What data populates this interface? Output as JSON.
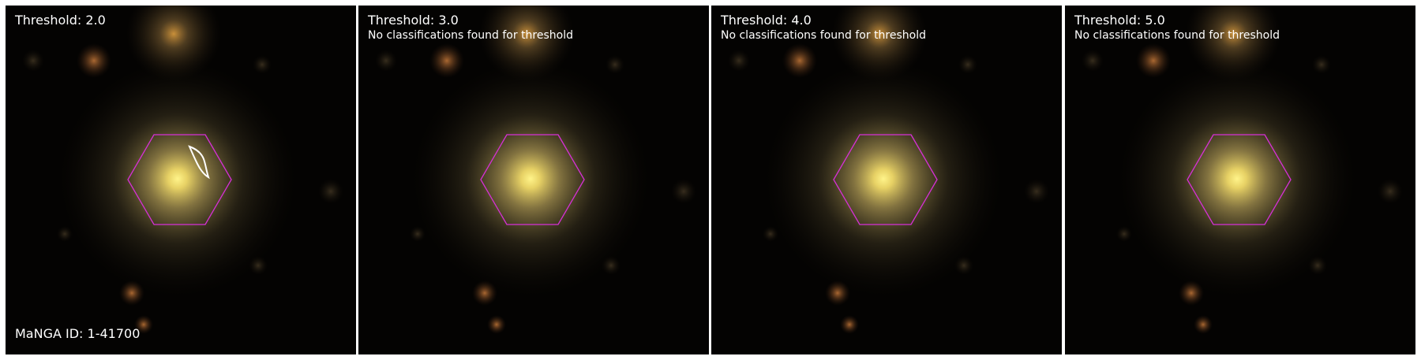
{
  "figure": {
    "manga_id_label": "MaNGA ID: 1-41700",
    "panels": [
      {
        "title": "Threshold: 2.0",
        "message": "",
        "has_contour": true
      },
      {
        "title": "Threshold: 3.0",
        "message": "No classifications found for threshold",
        "has_contour": false
      },
      {
        "title": "Threshold: 4.0",
        "message": "No classifications found for threshold",
        "has_contour": false
      },
      {
        "title": "Threshold: 5.0",
        "message": "No classifications found for threshold",
        "has_contour": false
      }
    ]
  },
  "colors": {
    "hexagon": "#d630d6",
    "contour": "#ffffff",
    "text": "#ffffff",
    "sky_background": "#040302",
    "galaxy_core": "#fff27a"
  }
}
